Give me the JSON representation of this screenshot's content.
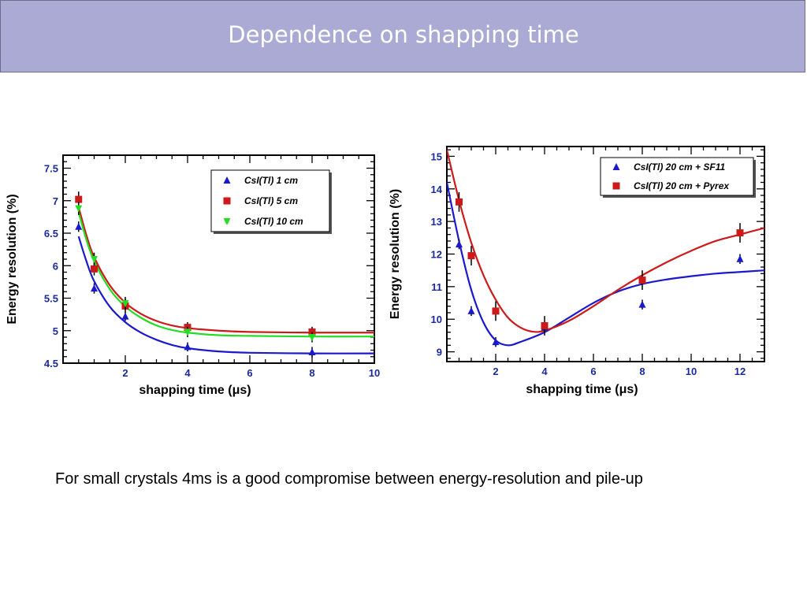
{
  "slide": {
    "title": "Dependence on shapping time",
    "caption": "For small crystals 4ms is a good compromise between energy-resolution and pile-up"
  },
  "colors": {
    "title_bar": "#aaaad4",
    "blue": "#1a1acc",
    "red": "#cc1a1a",
    "green": "#22dd22",
    "tick_text": "#1a2a99"
  },
  "chart_data": [
    {
      "type": "scatter",
      "xlabel": "shapping time (μs)",
      "ylabel": "Energy resolution (%)",
      "xlim": [
        0,
        10
      ],
      "ylim": [
        4.5,
        7.7
      ],
      "xticks": [
        2,
        4,
        6,
        8,
        10
      ],
      "yticks": [
        4.5,
        5,
        5.5,
        6,
        6.5,
        7,
        7.5
      ],
      "grid": false,
      "legend_position": "top-right",
      "series": [
        {
          "name": "CsI(Tl) 1 cm",
          "color": "#1a1acc",
          "marker": "triangle-up",
          "x": [
            0.5,
            1,
            2,
            4,
            8
          ],
          "y": [
            6.6,
            5.65,
            5.22,
            4.75,
            4.67
          ],
          "err": [
            0.08,
            0.08,
            0.07,
            0.07,
            0.08
          ],
          "fit": [
            [
              0.5,
              6.45
            ],
            [
              0.75,
              6.07
            ],
            [
              1,
              5.76
            ],
            [
              1.5,
              5.37
            ],
            [
              2,
              5.13
            ],
            [
              2.5,
              4.97
            ],
            [
              3,
              4.86
            ],
            [
              3.5,
              4.78
            ],
            [
              4,
              4.73
            ],
            [
              5,
              4.68
            ],
            [
              6,
              4.66
            ],
            [
              8,
              4.65
            ],
            [
              10,
              4.65
            ]
          ]
        },
        {
          "name": "CsI(Tl) 5 cm",
          "color": "#cc1a1a",
          "marker": "square",
          "x": [
            0.5,
            1,
            2,
            4,
            8
          ],
          "y": [
            7.02,
            5.95,
            5.38,
            5.05,
            4.98
          ],
          "err": [
            0.12,
            0.1,
            0.1,
            0.08,
            0.08
          ],
          "fit": [
            [
              0.5,
              6.9
            ],
            [
              0.75,
              6.47
            ],
            [
              1,
              6.13
            ],
            [
              1.5,
              5.7
            ],
            [
              2,
              5.43
            ],
            [
              2.5,
              5.26
            ],
            [
              3,
              5.15
            ],
            [
              3.5,
              5.08
            ],
            [
              4,
              5.04
            ],
            [
              5,
              5.0
            ],
            [
              6,
              4.98
            ],
            [
              8,
              4.97
            ],
            [
              10,
              4.97
            ]
          ]
        },
        {
          "name": "CsI(Tl) 10 cm",
          "color": "#22dd22",
          "marker": "triangle-down",
          "x": [
            0.5,
            1,
            2,
            4,
            8
          ],
          "y": [
            6.88,
            6.1,
            5.42,
            4.98,
            4.9
          ],
          "err": [
            0.1,
            0.1,
            0.1,
            0.08,
            0.08
          ],
          "fit": [
            [
              0.5,
              6.82
            ],
            [
              0.75,
              6.4
            ],
            [
              1,
              6.07
            ],
            [
              1.5,
              5.64
            ],
            [
              2,
              5.37
            ],
            [
              2.5,
              5.2
            ],
            [
              3,
              5.08
            ],
            [
              3.5,
              5.01
            ],
            [
              4,
              4.97
            ],
            [
              5,
              4.93
            ],
            [
              6,
              4.92
            ],
            [
              8,
              4.91
            ],
            [
              10,
              4.91
            ]
          ]
        }
      ]
    },
    {
      "type": "scatter",
      "xlabel": "shapping time (μs)",
      "ylabel": "Energy resolution (%)",
      "xlim": [
        0,
        13
      ],
      "ylim": [
        8.7,
        15.3
      ],
      "xticks": [
        2,
        4,
        6,
        8,
        10,
        12
      ],
      "yticks": [
        9,
        10,
        11,
        12,
        13,
        14,
        15
      ],
      "grid": false,
      "legend_position": "top-right",
      "series": [
        {
          "name": "CsI(Tl) 20 cm + SF11",
          "color": "#1a1acc",
          "marker": "triangle-up",
          "x": [
            0.5,
            1,
            2,
            4,
            8,
            12
          ],
          "y": [
            12.3,
            10.25,
            9.3,
            9.75,
            10.45,
            11.85
          ],
          "err": [
            0.15,
            0.15,
            0.15,
            0.15,
            0.15,
            0.15
          ],
          "fit": [
            [
              0,
              14.2
            ],
            [
              0.5,
              12.4
            ],
            [
              1,
              10.9
            ],
            [
              1.5,
              9.9
            ],
            [
              2,
              9.35
            ],
            [
              2.5,
              9.2
            ],
            [
              3,
              9.3
            ],
            [
              4,
              9.6
            ],
            [
              5,
              10.05
            ],
            [
              6,
              10.5
            ],
            [
              7,
              10.85
            ],
            [
              8,
              11.08
            ],
            [
              9,
              11.22
            ],
            [
              10,
              11.32
            ],
            [
              11,
              11.4
            ],
            [
              12,
              11.45
            ],
            [
              13,
              11.5
            ]
          ]
        },
        {
          "name": "CsI(Tl) 20 cm + Pyrex",
          "color": "#cc1a1a",
          "marker": "square",
          "x": [
            0.5,
            1,
            2,
            4,
            8,
            12
          ],
          "y": [
            13.6,
            11.95,
            10.25,
            9.8,
            11.2,
            12.65
          ],
          "err": [
            0.3,
            0.3,
            0.3,
            0.3,
            0.3,
            0.3
          ],
          "fit": [
            [
              0,
              15.2
            ],
            [
              0.5,
              13.65
            ],
            [
              1,
              12.35
            ],
            [
              1.5,
              11.35
            ],
            [
              2,
              10.6
            ],
            [
              2.5,
              10.05
            ],
            [
              3,
              9.75
            ],
            [
              3.5,
              9.62
            ],
            [
              4,
              9.65
            ],
            [
              5,
              9.95
            ],
            [
              6,
              10.4
            ],
            [
              7,
              10.9
            ],
            [
              8,
              11.35
            ],
            [
              9,
              11.75
            ],
            [
              10,
              12.1
            ],
            [
              11,
              12.4
            ],
            [
              12,
              12.6
            ],
            [
              13,
              12.8
            ]
          ]
        }
      ]
    }
  ]
}
